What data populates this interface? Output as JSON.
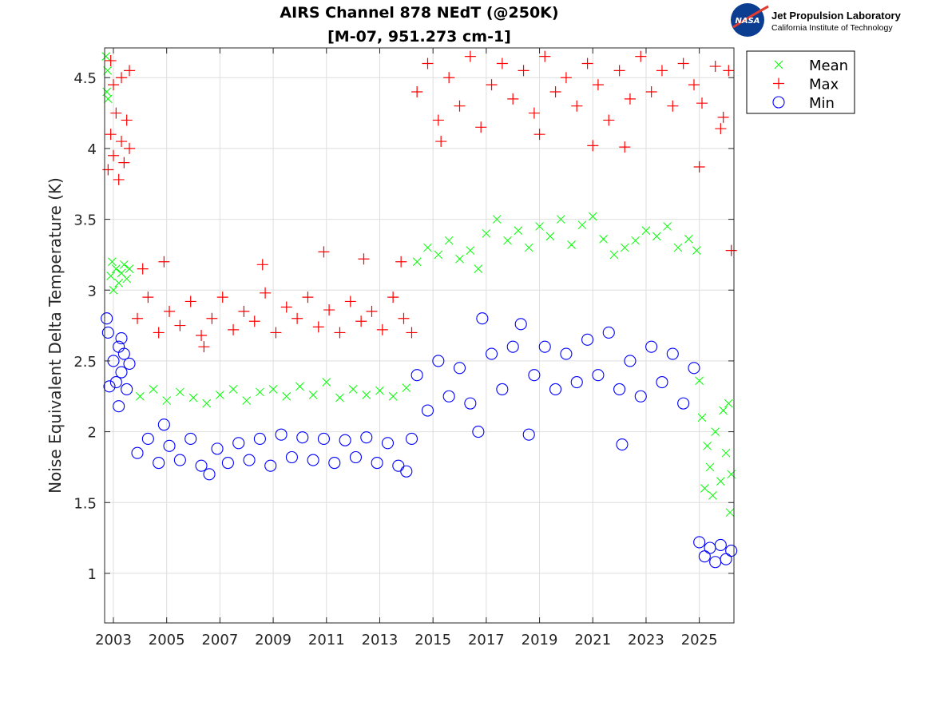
{
  "logo": {
    "org": "Jet Propulsion Laboratory",
    "sub": "California Institute of Technology",
    "badge": "NASA"
  },
  "chart_data": {
    "type": "scatter",
    "title": "AIRS Channel 878 NEdT (@250K)",
    "subtitle": "[M-07, 951.273 cm-1]",
    "xlabel": "",
    "ylabel": "Noise Equivalent Delta Temperature (K)",
    "xlim": [
      2002.67,
      2026.3
    ],
    "ylim": [
      0.65,
      4.71
    ],
    "xticks": [
      2003,
      2005,
      2007,
      2009,
      2011,
      2013,
      2015,
      2017,
      2019,
      2021,
      2023,
      2025
    ],
    "yticks": [
      1,
      1.5,
      2,
      2.5,
      3,
      3.5,
      4,
      4.5
    ],
    "ytick_labels": [
      "1",
      "1.5",
      "2",
      "2.5",
      "3",
      "3.5",
      "4",
      "4.5"
    ],
    "grid": true,
    "legend_position": "outside-top-right",
    "series": [
      {
        "name": "Mean",
        "marker": "x",
        "color": "#00ff00",
        "points": [
          [
            2002.72,
            4.65
          ],
          [
            2002.75,
            4.4
          ],
          [
            2002.78,
            4.55
          ],
          [
            2002.8,
            4.35
          ],
          [
            2002.9,
            3.1
          ],
          [
            2002.95,
            3.2
          ],
          [
            2003.0,
            3.0
          ],
          [
            2003.1,
            3.15
          ],
          [
            2003.2,
            3.05
          ],
          [
            2003.3,
            3.12
          ],
          [
            2003.4,
            3.18
          ],
          [
            2003.5,
            3.08
          ],
          [
            2003.6,
            3.15
          ],
          [
            2004.0,
            2.25
          ],
          [
            2004.5,
            2.3
          ],
          [
            2005.0,
            2.22
          ],
          [
            2005.5,
            2.28
          ],
          [
            2006.0,
            2.24
          ],
          [
            2006.5,
            2.2
          ],
          [
            2007.0,
            2.26
          ],
          [
            2007.5,
            2.3
          ],
          [
            2008.0,
            2.22
          ],
          [
            2008.5,
            2.28
          ],
          [
            2009.0,
            2.3
          ],
          [
            2009.5,
            2.25
          ],
          [
            2010.0,
            2.32
          ],
          [
            2010.5,
            2.26
          ],
          [
            2011.0,
            2.35
          ],
          [
            2011.5,
            2.24
          ],
          [
            2012.0,
            2.3
          ],
          [
            2012.5,
            2.26
          ],
          [
            2013.0,
            2.29
          ],
          [
            2013.5,
            2.25
          ],
          [
            2014.0,
            2.31
          ],
          [
            2014.4,
            3.2
          ],
          [
            2014.8,
            3.3
          ],
          [
            2015.2,
            3.25
          ],
          [
            2015.6,
            3.35
          ],
          [
            2016.0,
            3.22
          ],
          [
            2016.4,
            3.28
          ],
          [
            2016.7,
            3.15
          ],
          [
            2017.0,
            3.4
          ],
          [
            2017.4,
            3.5
          ],
          [
            2017.8,
            3.35
          ],
          [
            2018.2,
            3.42
          ],
          [
            2018.6,
            3.3
          ],
          [
            2019.0,
            3.45
          ],
          [
            2019.4,
            3.38
          ],
          [
            2019.8,
            3.5
          ],
          [
            2020.2,
            3.32
          ],
          [
            2020.6,
            3.46
          ],
          [
            2021.0,
            3.52
          ],
          [
            2021.4,
            3.36
          ],
          [
            2021.8,
            3.25
          ],
          [
            2022.2,
            3.3
          ],
          [
            2022.6,
            3.35
          ],
          [
            2023.0,
            3.42
          ],
          [
            2023.4,
            3.38
          ],
          [
            2023.8,
            3.45
          ],
          [
            2024.2,
            3.3
          ],
          [
            2024.6,
            3.36
          ],
          [
            2024.9,
            3.28
          ],
          [
            2025.0,
            2.36
          ],
          [
            2025.1,
            2.1
          ],
          [
            2025.2,
            1.6
          ],
          [
            2025.3,
            1.9
          ],
          [
            2025.4,
            1.75
          ],
          [
            2025.5,
            1.55
          ],
          [
            2025.6,
            2.0
          ],
          [
            2025.8,
            1.65
          ],
          [
            2025.9,
            2.15
          ],
          [
            2026.0,
            1.85
          ],
          [
            2026.1,
            2.2
          ],
          [
            2026.15,
            1.43
          ],
          [
            2026.2,
            1.7
          ]
        ]
      },
      {
        "name": "Max",
        "marker": "+",
        "color": "#ff0000",
        "points": [
          [
            2002.8,
            3.85
          ],
          [
            2002.9,
            4.1
          ],
          [
            2003.0,
            3.95
          ],
          [
            2003.1,
            4.25
          ],
          [
            2003.2,
            3.78
          ],
          [
            2003.3,
            4.05
          ],
          [
            2003.4,
            3.9
          ],
          [
            2003.5,
            4.2
          ],
          [
            2003.6,
            4.0
          ],
          [
            2003.0,
            4.45
          ],
          [
            2003.3,
            4.5
          ],
          [
            2003.6,
            4.55
          ],
          [
            2002.9,
            4.62
          ],
          [
            2003.9,
            2.8
          ],
          [
            2004.3,
            2.95
          ],
          [
            2004.7,
            2.7
          ],
          [
            2005.1,
            2.85
          ],
          [
            2005.5,
            2.75
          ],
          [
            2005.9,
            2.92
          ],
          [
            2006.3,
            2.68
          ],
          [
            2006.7,
            2.8
          ],
          [
            2007.1,
            2.95
          ],
          [
            2007.5,
            2.72
          ],
          [
            2007.9,
            2.85
          ],
          [
            2008.3,
            2.78
          ],
          [
            2008.7,
            2.98
          ],
          [
            2009.1,
            2.7
          ],
          [
            2009.5,
            2.88
          ],
          [
            2009.9,
            2.8
          ],
          [
            2010.3,
            2.95
          ],
          [
            2010.7,
            2.74
          ],
          [
            2011.1,
            2.86
          ],
          [
            2011.5,
            2.7
          ],
          [
            2011.9,
            2.92
          ],
          [
            2012.3,
            2.78
          ],
          [
            2012.7,
            2.85
          ],
          [
            2013.1,
            2.72
          ],
          [
            2013.5,
            2.95
          ],
          [
            2013.9,
            2.8
          ],
          [
            2014.2,
            2.7
          ],
          [
            2004.1,
            3.15
          ],
          [
            2004.9,
            3.2
          ],
          [
            2008.6,
            3.18
          ],
          [
            2010.9,
            3.27
          ],
          [
            2012.4,
            3.22
          ],
          [
            2013.8,
            3.2
          ],
          [
            2006.4,
            2.6
          ],
          [
            2014.4,
            4.4
          ],
          [
            2014.8,
            4.6
          ],
          [
            2015.2,
            4.2
          ],
          [
            2015.6,
            4.5
          ],
          [
            2016.0,
            4.3
          ],
          [
            2016.4,
            4.65
          ],
          [
            2016.8,
            4.15
          ],
          [
            2017.2,
            4.45
          ],
          [
            2017.6,
            4.6
          ],
          [
            2018.0,
            4.35
          ],
          [
            2018.4,
            4.55
          ],
          [
            2018.8,
            4.25
          ],
          [
            2019.2,
            4.65
          ],
          [
            2019.6,
            4.4
          ],
          [
            2020.0,
            4.5
          ],
          [
            2020.4,
            4.3
          ],
          [
            2020.8,
            4.6
          ],
          [
            2021.2,
            4.45
          ],
          [
            2021.6,
            4.2
          ],
          [
            2022.0,
            4.55
          ],
          [
            2022.4,
            4.35
          ],
          [
            2022.8,
            4.65
          ],
          [
            2023.2,
            4.4
          ],
          [
            2023.6,
            4.55
          ],
          [
            2024.0,
            4.3
          ],
          [
            2024.4,
            4.6
          ],
          [
            2024.8,
            4.45
          ],
          [
            2021.0,
            4.02
          ],
          [
            2022.2,
            4.01
          ],
          [
            2015.3,
            4.05
          ],
          [
            2019.0,
            4.1
          ],
          [
            2025.0,
            3.87
          ],
          [
            2025.1,
            4.32
          ],
          [
            2025.6,
            4.58
          ],
          [
            2025.8,
            4.14
          ],
          [
            2025.9,
            4.22
          ],
          [
            2026.1,
            4.55
          ],
          [
            2026.2,
            3.28
          ]
        ]
      },
      {
        "name": "Min",
        "marker": "o",
        "color": "#0000ff",
        "points": [
          [
            2002.75,
            2.8
          ],
          [
            2002.8,
            2.7
          ],
          [
            2002.85,
            2.32
          ],
          [
            2003.0,
            2.5
          ],
          [
            2003.1,
            2.35
          ],
          [
            2003.2,
            2.6
          ],
          [
            2003.3,
            2.42
          ],
          [
            2003.4,
            2.55
          ],
          [
            2003.5,
            2.3
          ],
          [
            2003.6,
            2.48
          ],
          [
            2003.2,
            2.18
          ],
          [
            2003.3,
            2.66
          ],
          [
            2003.9,
            1.85
          ],
          [
            2004.3,
            1.95
          ],
          [
            2004.7,
            1.78
          ],
          [
            2004.9,
            2.05
          ],
          [
            2005.1,
            1.9
          ],
          [
            2005.5,
            1.8
          ],
          [
            2005.9,
            1.95
          ],
          [
            2006.3,
            1.76
          ],
          [
            2006.6,
            1.7
          ],
          [
            2006.9,
            1.88
          ],
          [
            2007.3,
            1.78
          ],
          [
            2007.7,
            1.92
          ],
          [
            2008.1,
            1.8
          ],
          [
            2008.5,
            1.95
          ],
          [
            2008.9,
            1.76
          ],
          [
            2009.3,
            1.98
          ],
          [
            2009.7,
            1.82
          ],
          [
            2010.1,
            1.96
          ],
          [
            2010.5,
            1.8
          ],
          [
            2010.9,
            1.95
          ],
          [
            2011.3,
            1.78
          ],
          [
            2011.7,
            1.94
          ],
          [
            2012.1,
            1.82
          ],
          [
            2012.5,
            1.96
          ],
          [
            2012.9,
            1.78
          ],
          [
            2013.3,
            1.92
          ],
          [
            2013.7,
            1.76
          ],
          [
            2014.0,
            1.72
          ],
          [
            2014.2,
            1.95
          ],
          [
            2014.4,
            2.4
          ],
          [
            2014.8,
            2.15
          ],
          [
            2015.2,
            2.5
          ],
          [
            2015.6,
            2.25
          ],
          [
            2016.0,
            2.45
          ],
          [
            2016.4,
            2.2
          ],
          [
            2016.7,
            2.0
          ],
          [
            2016.85,
            2.8
          ],
          [
            2017.2,
            2.55
          ],
          [
            2017.6,
            2.3
          ],
          [
            2018.0,
            2.6
          ],
          [
            2018.3,
            2.76
          ],
          [
            2018.6,
            1.98
          ],
          [
            2018.8,
            2.4
          ],
          [
            2019.2,
            2.6
          ],
          [
            2019.6,
            2.3
          ],
          [
            2020.0,
            2.55
          ],
          [
            2020.4,
            2.35
          ],
          [
            2020.8,
            2.65
          ],
          [
            2021.2,
            2.4
          ],
          [
            2021.6,
            2.7
          ],
          [
            2022.0,
            2.3
          ],
          [
            2022.1,
            1.91
          ],
          [
            2022.4,
            2.5
          ],
          [
            2022.8,
            2.25
          ],
          [
            2023.2,
            2.6
          ],
          [
            2023.6,
            2.35
          ],
          [
            2024.0,
            2.55
          ],
          [
            2024.4,
            2.2
          ],
          [
            2024.8,
            2.45
          ],
          [
            2025.0,
            1.22
          ],
          [
            2025.2,
            1.12
          ],
          [
            2025.4,
            1.18
          ],
          [
            2025.6,
            1.08
          ],
          [
            2025.8,
            1.2
          ],
          [
            2026.0,
            1.1
          ],
          [
            2026.2,
            1.16
          ]
        ]
      }
    ]
  }
}
